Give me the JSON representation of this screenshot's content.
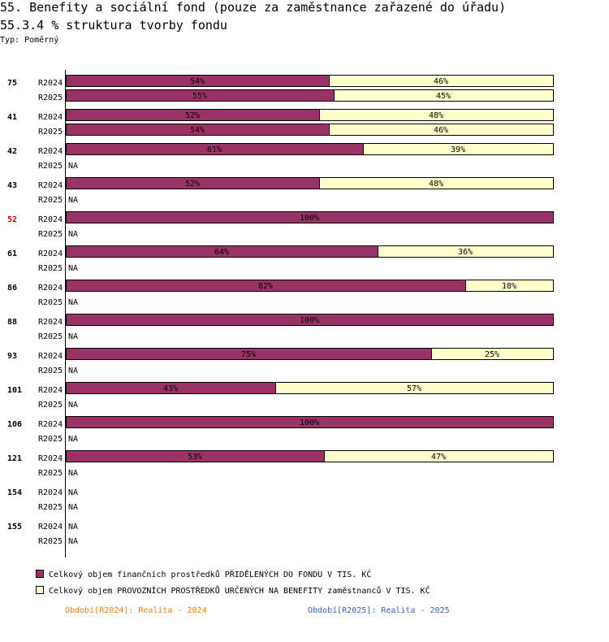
{
  "title": "55. Benefity a sociální fond (pouze za zaměstnance zařazené do úřadu)",
  "subtitle": "55.3.4 % struktura tvorby fondu",
  "type_label": "Typ: Poměrný",
  "colors": {
    "series1": "#993366",
    "series2": "#ffffcc",
    "highlight_group": "#cc0000",
    "period2024": "#ff8000",
    "period2025": "#3366cc"
  },
  "chart_data": {
    "type": "bar",
    "orientation": "horizontal",
    "stacked": true,
    "unit": "%",
    "xlim": [
      0,
      100
    ],
    "na_label": "NA",
    "series": [
      {
        "name": "Celkový objem finančních prostředků PŘIDĚLENÝCH DO FONDU V TIS. KČ",
        "color": "#993366"
      },
      {
        "name": "Celkový objem PROVOZNÍCH PROSTŘEDKŮ URČENÝCH NA BENEFITY zaměstnanců V TIS. KČ",
        "color": "#ffffcc"
      }
    ],
    "groups": [
      {
        "label": "75",
        "highlight": false,
        "rows": [
          {
            "period": "R2024",
            "values": [
              54,
              46
            ]
          },
          {
            "period": "R2025",
            "values": [
              55,
              45
            ]
          }
        ]
      },
      {
        "label": "41",
        "highlight": false,
        "rows": [
          {
            "period": "R2024",
            "values": [
              52,
              48
            ]
          },
          {
            "period": "R2025",
            "values": [
              54,
              46
            ]
          }
        ]
      },
      {
        "label": "42",
        "highlight": false,
        "rows": [
          {
            "period": "R2024",
            "values": [
              61,
              39
            ]
          },
          {
            "period": "R2025",
            "values": null
          }
        ]
      },
      {
        "label": "43",
        "highlight": false,
        "rows": [
          {
            "period": "R2024",
            "values": [
              52,
              48
            ]
          },
          {
            "period": "R2025",
            "values": null
          }
        ]
      },
      {
        "label": "52",
        "highlight": true,
        "rows": [
          {
            "period": "R2024",
            "values": [
              100,
              0
            ]
          },
          {
            "period": "R2025",
            "values": null
          }
        ]
      },
      {
        "label": "61",
        "highlight": false,
        "rows": [
          {
            "period": "R2024",
            "values": [
              64,
              36
            ]
          },
          {
            "period": "R2025",
            "values": null
          }
        ]
      },
      {
        "label": "86",
        "highlight": false,
        "rows": [
          {
            "period": "R2024",
            "values": [
              82,
              18
            ]
          },
          {
            "period": "R2025",
            "values": null
          }
        ]
      },
      {
        "label": "88",
        "highlight": false,
        "rows": [
          {
            "period": "R2024",
            "values": [
              100,
              0
            ]
          },
          {
            "period": "R2025",
            "values": null
          }
        ]
      },
      {
        "label": "93",
        "highlight": false,
        "rows": [
          {
            "period": "R2024",
            "values": [
              75,
              25
            ]
          },
          {
            "period": "R2025",
            "values": null
          }
        ]
      },
      {
        "label": "101",
        "highlight": false,
        "rows": [
          {
            "period": "R2024",
            "values": [
              43,
              57
            ]
          },
          {
            "period": "R2025",
            "values": null
          }
        ]
      },
      {
        "label": "106",
        "highlight": false,
        "rows": [
          {
            "period": "R2024",
            "values": [
              100,
              0
            ]
          },
          {
            "period": "R2025",
            "values": null
          }
        ]
      },
      {
        "label": "121",
        "highlight": false,
        "rows": [
          {
            "period": "R2024",
            "values": [
              53,
              47
            ]
          },
          {
            "period": "R2025",
            "values": null
          }
        ]
      },
      {
        "label": "154",
        "highlight": false,
        "rows": [
          {
            "period": "R2024",
            "values": null
          },
          {
            "period": "R2025",
            "values": null
          }
        ]
      },
      {
        "label": "155",
        "highlight": false,
        "rows": [
          {
            "period": "R2024",
            "values": null
          },
          {
            "period": "R2025",
            "values": null
          }
        ]
      }
    ],
    "periods": [
      {
        "text": "Období[R2024]: Realita - 2024"
      },
      {
        "text": "Období[R2025]: Realita - 2025"
      }
    ]
  }
}
